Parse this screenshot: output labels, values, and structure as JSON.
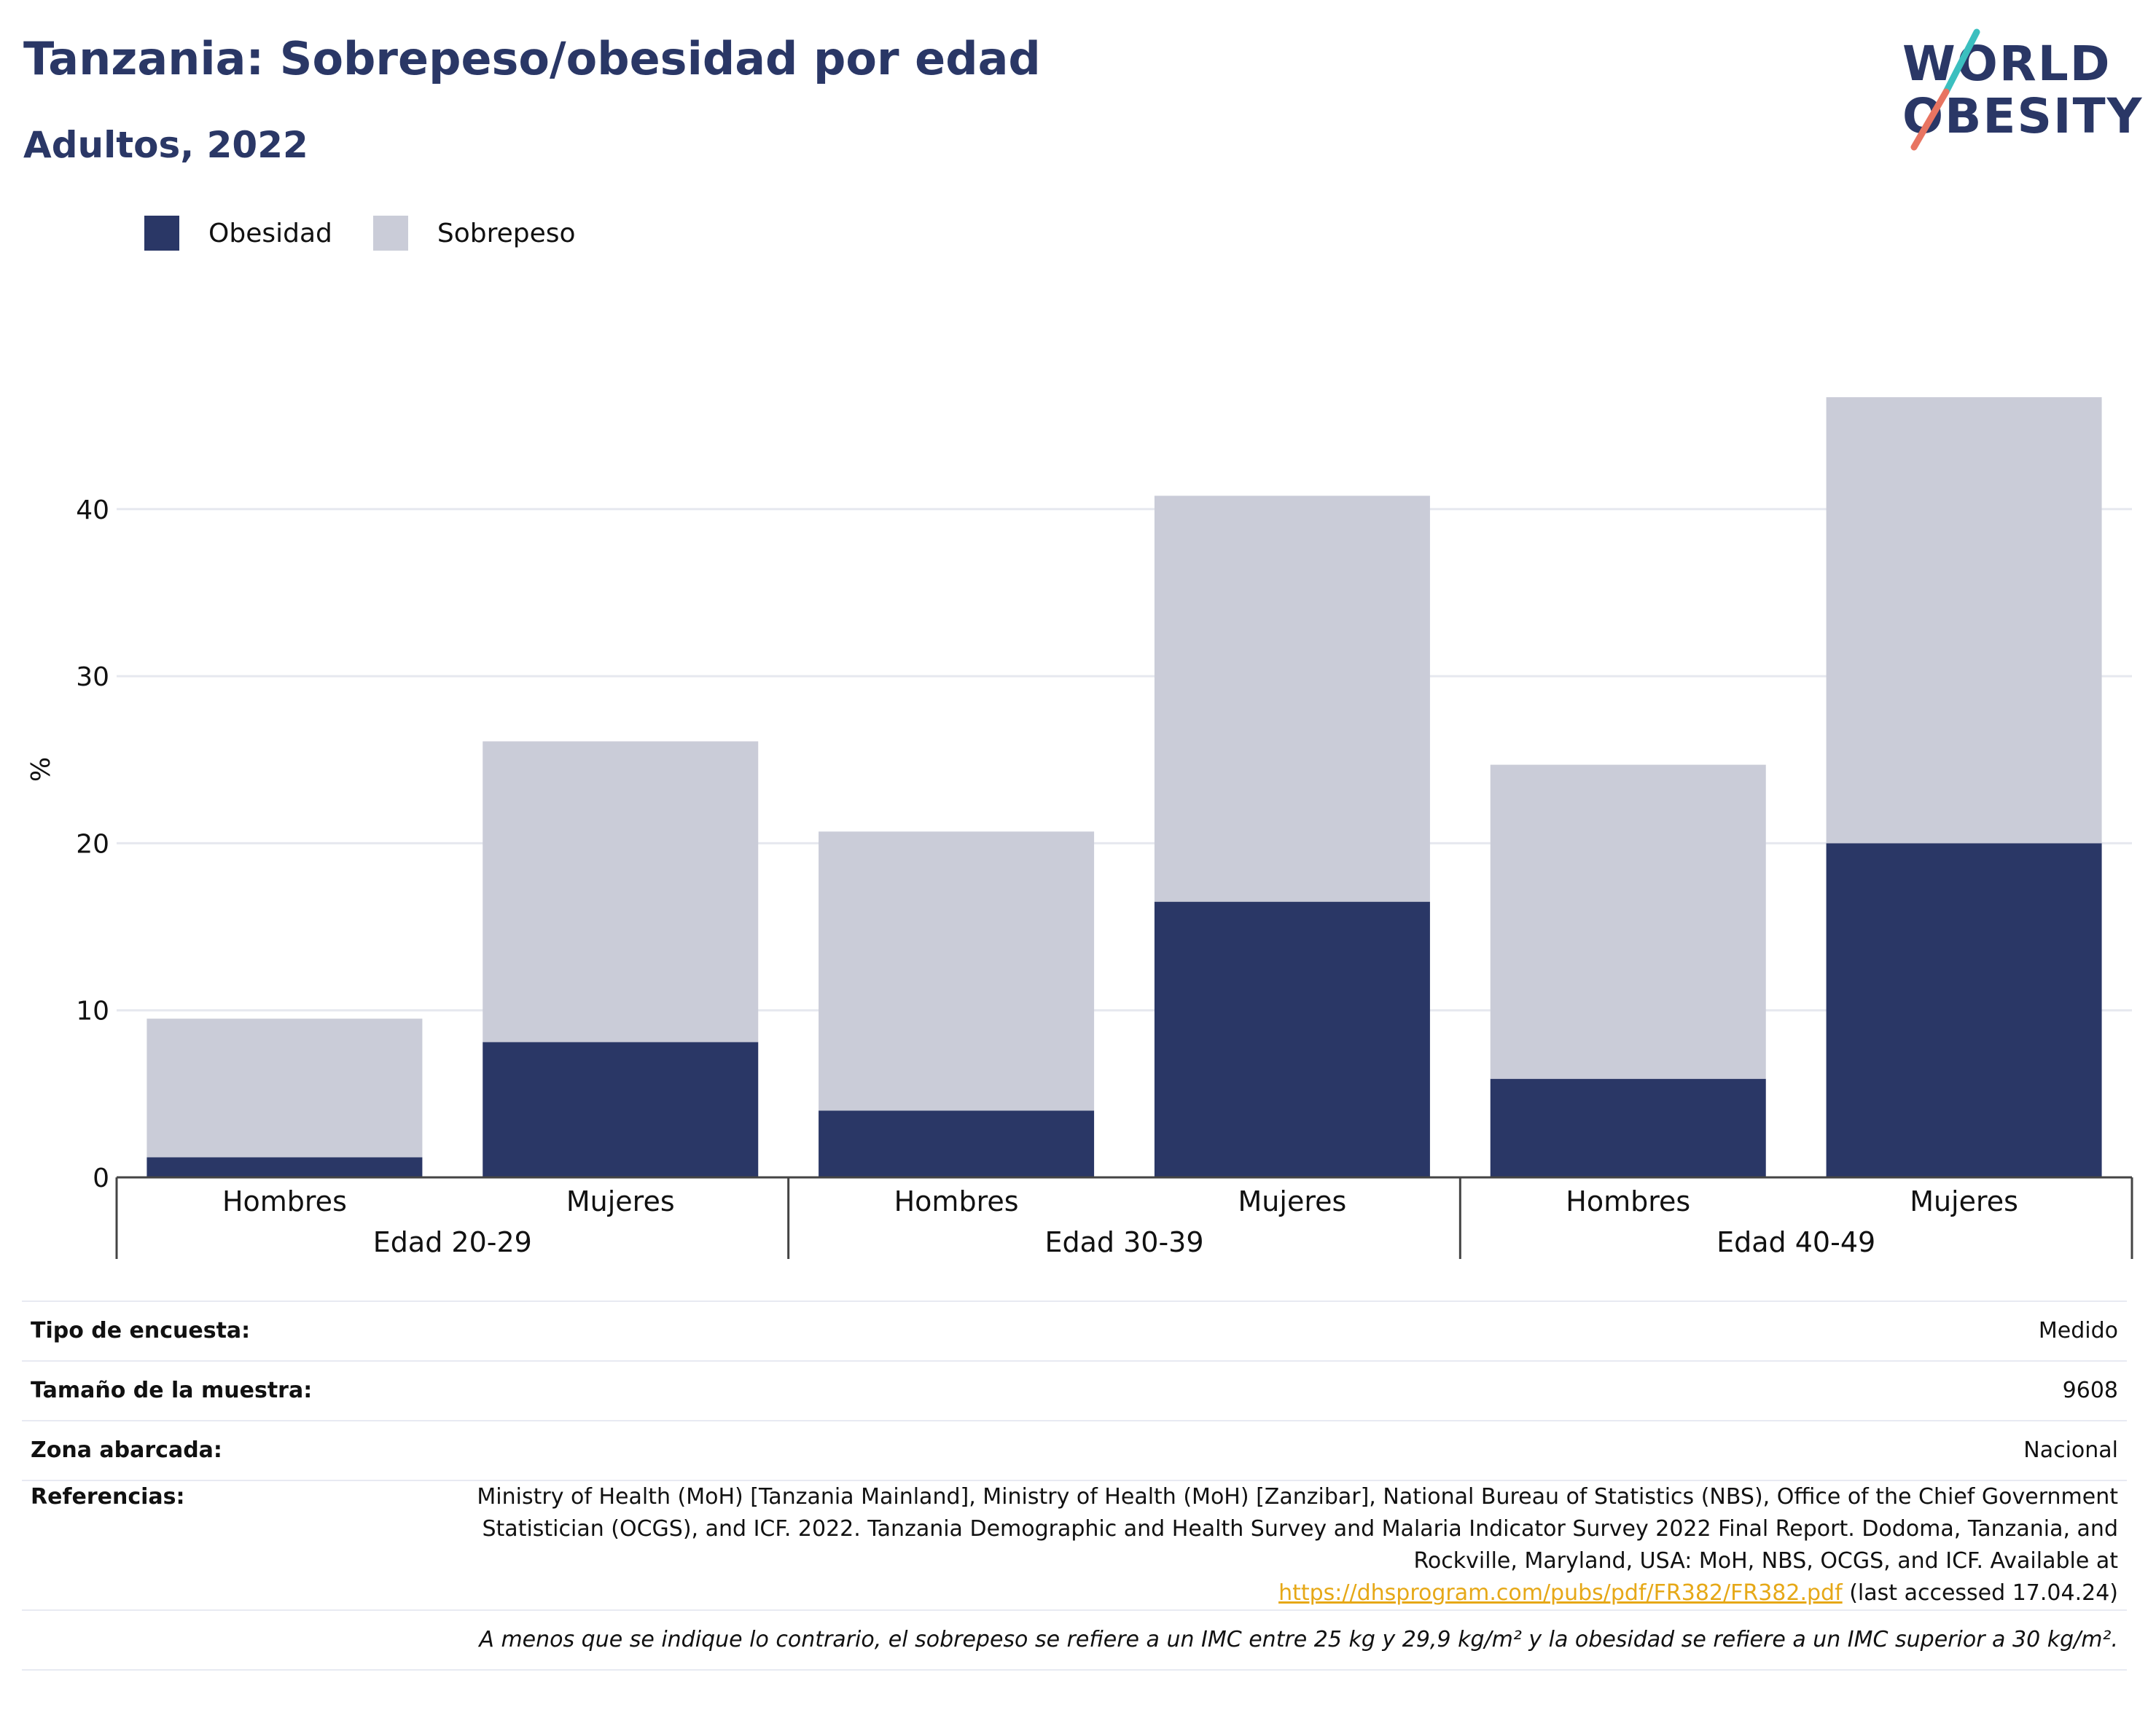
{
  "header": {
    "title": "Tanzania: Sobrepeso/obesidad por edad",
    "subtitle": "Adultos, 2022",
    "logo_line1": "WORLD",
    "logo_line2": "OBESITY"
  },
  "legend": {
    "items": [
      {
        "label": "Obesidad",
        "color": "#2a3766"
      },
      {
        "label": "Sobrepeso",
        "color": "#caccd8"
      }
    ]
  },
  "chart_data": {
    "type": "bar",
    "stacked": true,
    "ylabel": "%",
    "xlabel": "",
    "ylim": [
      0,
      50
    ],
    "yticks": [
      0,
      10,
      20,
      30,
      40
    ],
    "grid": true,
    "legend_position": "top-left",
    "groups": [
      {
        "label": "Edad 20-29",
        "categories": [
          "Hombres",
          "Mujeres"
        ]
      },
      {
        "label": "Edad 30-39",
        "categories": [
          "Hombres",
          "Mujeres"
        ]
      },
      {
        "label": "Edad 40-49",
        "categories": [
          "Hombres",
          "Mujeres"
        ]
      }
    ],
    "series": [
      {
        "name": "Obesidad",
        "color": "#2a3766",
        "values": [
          1.2,
          8.1,
          4.0,
          16.5,
          5.9,
          20.0
        ]
      },
      {
        "name": "Sobrepeso",
        "color": "#caccd8",
        "values": [
          8.3,
          18.0,
          16.7,
          24.3,
          18.8,
          26.7
        ]
      }
    ]
  },
  "info": {
    "rows": [
      {
        "key": "Tipo de encuesta:",
        "value": "Medido"
      },
      {
        "key": "Tamaño de la muestra:",
        "value": "9608"
      },
      {
        "key": "Zona abarcada:",
        "value": "Nacional"
      }
    ],
    "references_key": "Referencias:",
    "references_text": "Ministry of Health (MoH) [Tanzania Mainland], Ministry of Health (MoH) [Zanzibar], National Bureau of Statistics (NBS), Office of the Chief Government Statistician (OCGS), and ICF. 2022. Tanzania Demographic and Health Survey and Malaria Indicator Survey 2022 Final Report. Dodoma, Tanzania, and Rockville, Maryland, USA: MoH, NBS, OCGS, and ICF. Available at",
    "references_link": "https://dhsprogram.com/pubs/pdf/FR382/FR382.pdf",
    "references_suffix": "(last accessed 17.04.24)",
    "note": "A menos que se indique lo contrario, el sobrepeso se refiere a un IMC entre 25 kg y 29,9 kg/m² y la obesidad se refiere a un IMC superior a 30 kg/m²."
  }
}
